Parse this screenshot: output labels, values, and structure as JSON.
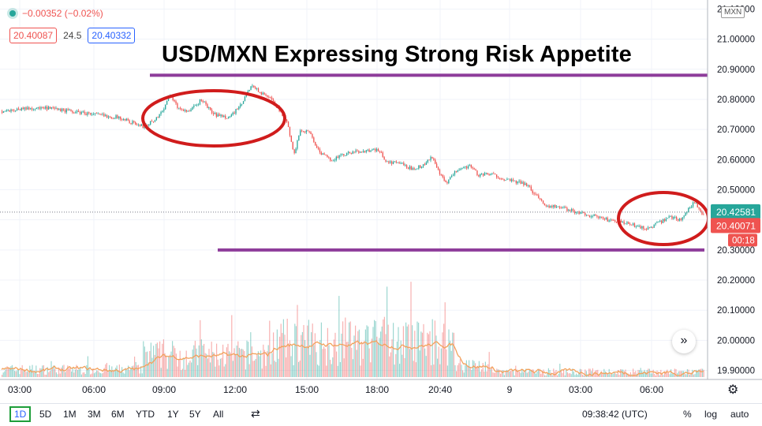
{
  "header": {
    "change": "−0.00352 (−0.02%)",
    "bid": "20.40087",
    "spread": "24.5",
    "ask": "20.40332"
  },
  "headline": "USD/MXN Expressing Strong Risk Appetite",
  "currency": "MXN",
  "price_axis": {
    "ticks": [
      "21.10000",
      "21.00000",
      "20.90000",
      "20.80000",
      "20.70000",
      "20.60000",
      "20.50000",
      "20.40000",
      "20.30000",
      "20.20000",
      "20.10000",
      "20.00000",
      "19.90000"
    ],
    "last_label": "20.42581",
    "bid_label": "20.40071",
    "countdown": "00:18"
  },
  "time_axis": {
    "labels": [
      "03:00",
      "06:00",
      "09:00",
      "12:00",
      "15:00",
      "18:00",
      "20:40",
      "9",
      "03:00",
      "06:00"
    ]
  },
  "toolbar": {
    "ranges": [
      "1D",
      "5D",
      "1M",
      "3M",
      "6M",
      "YTD",
      "1Y",
      "5Y",
      "All"
    ],
    "clock": "09:38:42 (UTC)",
    "percent": "%",
    "log": "log",
    "auto": "auto"
  },
  "colors": {
    "up": "#26a69a",
    "down": "#ef5350",
    "annotation_line": "#8e3c9a",
    "annotation_ellipse": "#d01c1c",
    "volume_ma": "#f2a25c"
  },
  "icons": {
    "goto_realtime": "double-chevron-right-icon",
    "settings": "gear-icon",
    "compare": "compare-icon"
  },
  "chart_data": {
    "type": "candlestick",
    "title": "USD/MXN Expressing Strong Risk Appetite",
    "ylim": [
      19.87,
      21.13
    ],
    "x_ticks": [
      "03:00",
      "06:00",
      "09:00",
      "12:00",
      "15:00",
      "18:00",
      "20:40",
      "9",
      "03:00",
      "06:00"
    ],
    "price_path": [
      [
        0,
        20.76
      ],
      [
        30,
        20.77
      ],
      [
        60,
        20.77
      ],
      [
        90,
        20.76
      ],
      [
        120,
        20.75
      ],
      [
        150,
        20.74
      ],
      [
        180,
        20.71
      ],
      [
        195,
        20.73
      ],
      [
        205,
        20.76
      ],
      [
        215,
        20.82
      ],
      [
        225,
        20.77
      ],
      [
        240,
        20.76
      ],
      [
        255,
        20.8
      ],
      [
        270,
        20.75
      ],
      [
        290,
        20.74
      ],
      [
        305,
        20.78
      ],
      [
        318,
        20.85
      ],
      [
        330,
        20.82
      ],
      [
        345,
        20.8
      ],
      [
        355,
        20.76
      ],
      [
        365,
        20.71
      ],
      [
        372,
        20.61
      ],
      [
        380,
        20.7
      ],
      [
        392,
        20.69
      ],
      [
        405,
        20.62
      ],
      [
        420,
        20.6
      ],
      [
        440,
        20.62
      ],
      [
        460,
        20.63
      ],
      [
        480,
        20.63
      ],
      [
        490,
        20.59
      ],
      [
        505,
        20.59
      ],
      [
        520,
        20.57
      ],
      [
        535,
        20.58
      ],
      [
        548,
        20.61
      ],
      [
        555,
        20.56
      ],
      [
        565,
        20.52
      ],
      [
        580,
        20.57
      ],
      [
        596,
        20.58
      ],
      [
        605,
        20.55
      ],
      [
        625,
        20.55
      ],
      [
        645,
        20.53
      ],
      [
        665,
        20.52
      ],
      [
        680,
        20.48
      ],
      [
        690,
        20.45
      ],
      [
        710,
        20.44
      ],
      [
        740,
        20.42
      ],
      [
        770,
        20.4
      ],
      [
        790,
        20.39
      ],
      [
        805,
        20.38
      ],
      [
        820,
        20.37
      ],
      [
        835,
        20.39
      ],
      [
        850,
        20.41
      ],
      [
        862,
        20.4
      ],
      [
        870,
        20.43
      ],
      [
        880,
        20.46
      ],
      [
        887,
        20.43
      ],
      [
        895,
        20.4
      ]
    ],
    "last_price": 20.42581,
    "bid_price": 20.40071,
    "annotations": {
      "resistance": 20.88,
      "support": 20.3
    }
  }
}
